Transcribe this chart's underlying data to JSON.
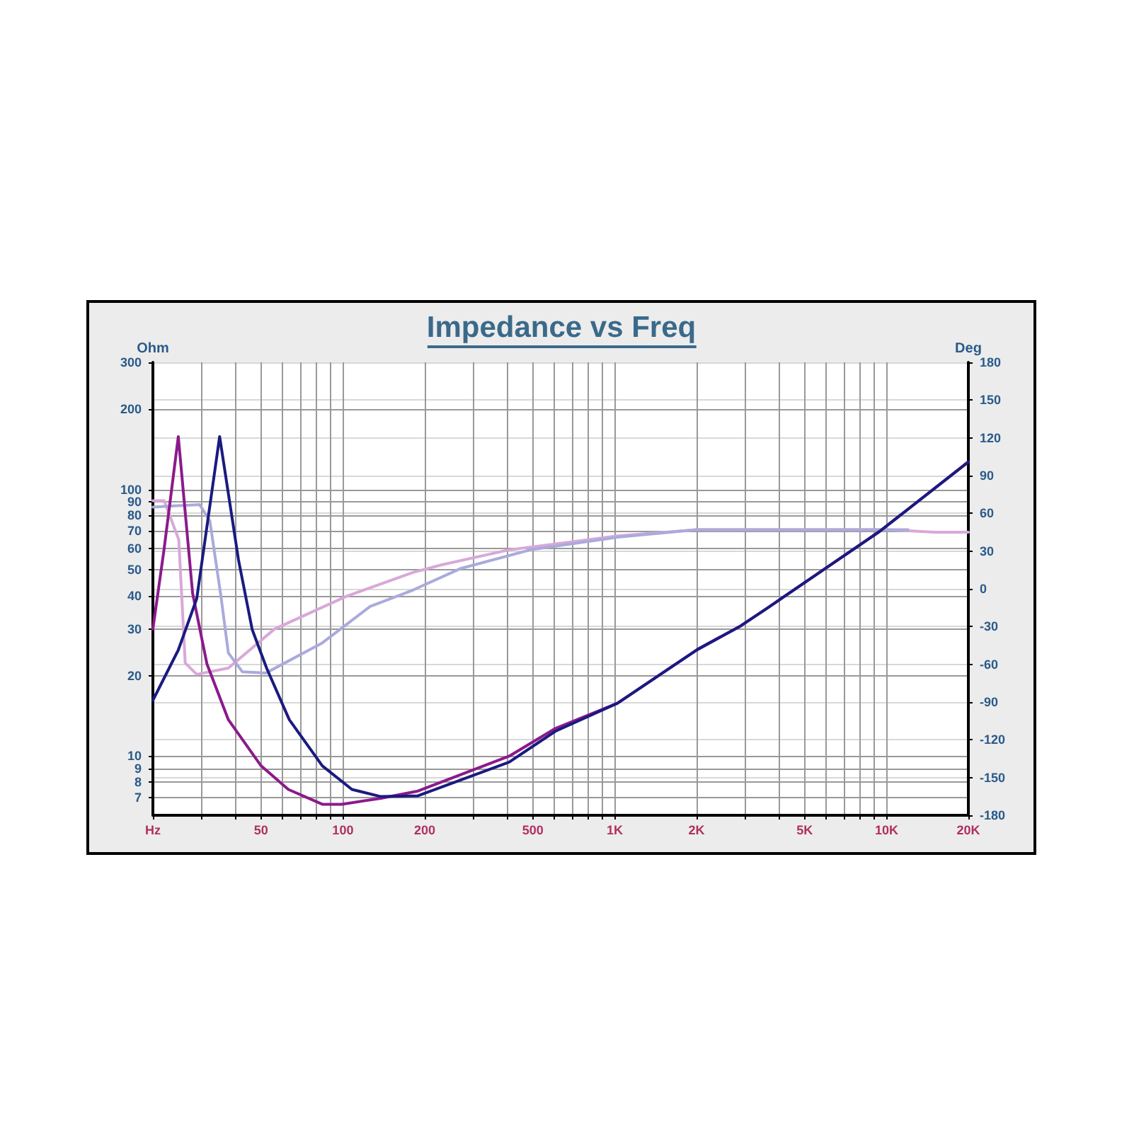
{
  "chart_data": {
    "type": "line",
    "title": "Impedance vs Freq",
    "ylabel": "Ohm",
    "y2label": "Deg",
    "log": "xy",
    "grid": true,
    "marker": "none",
    "line_style": "solid",
    "xlim": [
      20,
      20000
    ],
    "xticks": [
      {
        "value": 20,
        "label": "Hz"
      },
      {
        "value": 30,
        "label": null
      },
      {
        "value": 40,
        "label": null
      },
      50,
      {
        "value": 60,
        "label": null
      },
      {
        "value": 70,
        "label": null
      },
      {
        "value": 80,
        "label": null
      },
      {
        "value": 90,
        "label": null
      },
      100,
      200,
      {
        "value": 300,
        "label": null
      },
      {
        "value": 400,
        "label": null
      },
      500,
      {
        "value": 600,
        "label": null
      },
      {
        "value": 700,
        "label": null
      },
      {
        "value": 800,
        "label": null
      },
      {
        "value": 900,
        "label": null
      },
      {
        "value": 1000,
        "label": "1K"
      },
      {
        "value": 2000,
        "label": "2K"
      },
      {
        "value": 3000,
        "label": null
      },
      {
        "value": 4000,
        "label": null
      },
      {
        "value": 5000,
        "label": "5K"
      },
      {
        "value": 6000,
        "label": null
      },
      {
        "value": 7000,
        "label": null
      },
      {
        "value": 8000,
        "label": null
      },
      {
        "value": 9000,
        "label": null
      },
      {
        "value": 10000,
        "label": "10K"
      },
      {
        "value": 20000,
        "label": "20K"
      }
    ],
    "ylim": [
      6,
      300
    ],
    "yticks": [
      7,
      8,
      9,
      10,
      20,
      30,
      40,
      50,
      60,
      70,
      80,
      90,
      100,
      200,
      300
    ],
    "y2lim": [
      -180,
      180
    ],
    "y2ticks": [
      -180,
      -150,
      -120,
      -90,
      -60,
      -30,
      0,
      30,
      60,
      90,
      120,
      150,
      180
    ],
    "series": [
      {
        "color": "#8b1a8b",
        "x": [
          20,
          22,
          24.8,
          28,
          31.6,
          37.9,
          50,
          63,
          84,
          99,
          138,
          189,
          409,
          605,
          1024,
          2013,
          2907,
          3672,
          4140,
          9420,
          20000
        ],
        "values": [
          30,
          60,
          158,
          40.8,
          22.2,
          13.7,
          9.2,
          7.5,
          6.6,
          6.6,
          6.95,
          7.4,
          10,
          12.7,
          15.8,
          25.1,
          30.8,
          36.1,
          39.3,
          69.6,
          127
        ]
      },
      {
        "color": "#1a1a80",
        "x": [
          20,
          24.8,
          29,
          35.2,
          41.3,
          46.4,
          52.4,
          63.5,
          84,
          108,
          138,
          189,
          409,
          605,
          1024,
          2013,
          2907,
          3672,
          4140,
          9420,
          20000
        ],
        "values": [
          16.2,
          25,
          39,
          158,
          54.5,
          29.8,
          21.4,
          13.7,
          9.2,
          7.5,
          7.05,
          7.1,
          9.5,
          12.4,
          15.8,
          25.1,
          30.8,
          36.1,
          39.3,
          69.6,
          127
        ]
      },
      {
        "color": "#d8a8d8",
        "axis": "y2",
        "x": [
          20,
          22,
          24.9,
          26.3,
          29,
          37.9,
          56,
          103,
          181,
          230,
          409,
          1024,
          2000,
          5000,
          10000,
          15000,
          20000
        ],
        "values": [
          70,
          70,
          39,
          -59,
          -68,
          -63,
          -32,
          -6,
          13,
          19,
          31,
          42,
          47,
          47,
          47,
          45,
          45
        ]
      },
      {
        "color": "#aaaadc",
        "axis": "y2",
        "x": [
          20,
          29.7,
          32.4,
          35.6,
          37.9,
          42.7,
          52,
          84,
          126,
          181,
          270,
          490,
          1024,
          2000,
          5000,
          10000,
          12000
        ],
        "values": [
          65,
          67,
          54,
          -6,
          -51,
          -66,
          -67,
          -43,
          -14,
          -1,
          16,
          31,
          41,
          47,
          47,
          47,
          47
        ]
      }
    ]
  }
}
